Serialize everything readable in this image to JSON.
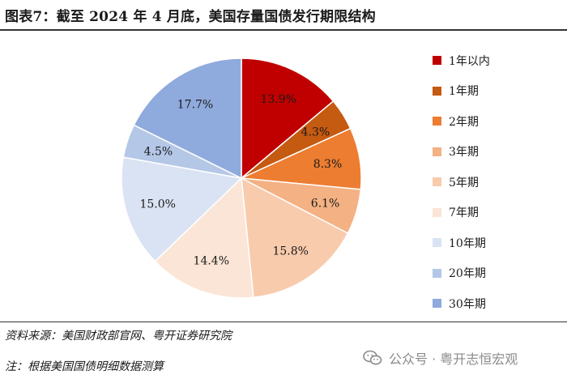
{
  "title": "图表7：截至 2024 年 4 月底，美国存量国债发行期限结构",
  "chart_data": {
    "type": "pie",
    "start_angle_deg": 0,
    "direction": "clockwise",
    "slices": [
      {
        "label": "1年以内",
        "value": 13.9,
        "display": "13.9%",
        "color": "#c00000"
      },
      {
        "label": "1年期",
        "value": 4.3,
        "display": "4.3%",
        "color": "#c55a11"
      },
      {
        "label": "2年期",
        "value": 8.3,
        "display": "8.3%",
        "color": "#ed7d31"
      },
      {
        "label": "3年期",
        "value": 6.1,
        "display": "6.1%",
        "color": "#f4b183"
      },
      {
        "label": "5年期",
        "value": 15.8,
        "display": "15.8%",
        "color": "#f8cbad"
      },
      {
        "label": "7年期",
        "value": 14.4,
        "display": "14.4%",
        "color": "#fbe5d6"
      },
      {
        "label": "10年期",
        "value": 15.0,
        "display": "15.0%",
        "color": "#dae3f3"
      },
      {
        "label": "20年期",
        "value": 4.5,
        "display": "4.5%",
        "color": "#b4c7e7"
      },
      {
        "label": "30年期",
        "value": 17.7,
        "display": "17.7%",
        "color": "#8faadc"
      }
    ],
    "legend_position": "right"
  },
  "footer": {
    "source": "资料来源：美国财政部官网、粤开证券研究院",
    "note": "注：根据美国国债明细数据测算"
  },
  "watermark": {
    "text": "公众号 · 粤开志恒宏观",
    "icon": "wechat-icon"
  }
}
